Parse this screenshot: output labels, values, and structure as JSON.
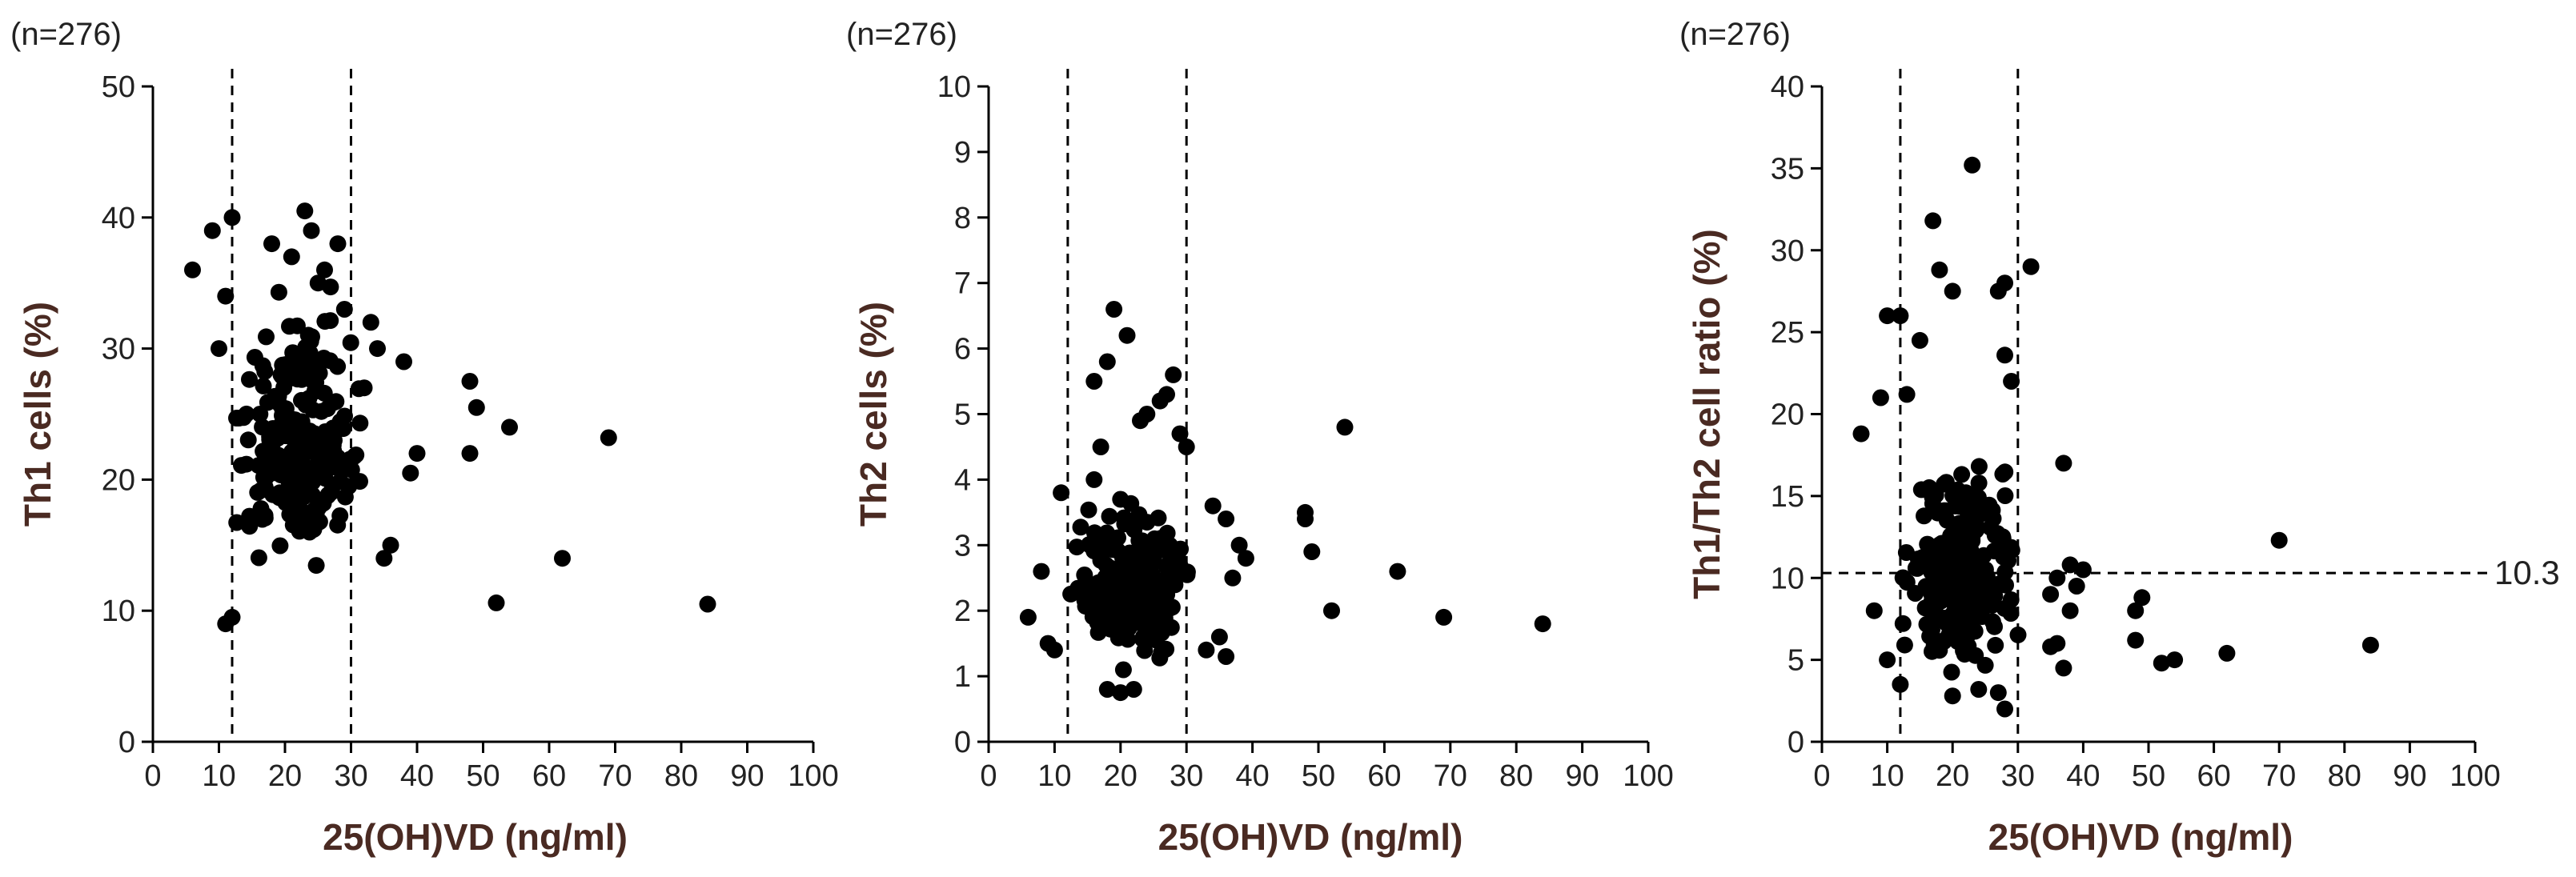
{
  "figure": {
    "colors": {
      "ink": "#000000",
      "title": "#4a2a22",
      "text": "#222222"
    }
  },
  "chart_data": [
    {
      "type": "scatter",
      "n_label": "(n=276)",
      "xlabel": "25(OH)VD (ng/ml)",
      "ylabel": "Th1 cells (%)",
      "xlim": [
        0,
        100
      ],
      "ylim": [
        0,
        50
      ],
      "xticks": [
        0,
        10,
        20,
        30,
        40,
        50,
        60,
        70,
        80,
        90,
        100
      ],
      "yticks": [
        0,
        10,
        20,
        30,
        40,
        50
      ],
      "vlines": [
        12,
        30
      ],
      "seed": 11,
      "n": 276,
      "points": [
        [
          6,
          36
        ],
        [
          9,
          39
        ],
        [
          12,
          40
        ],
        [
          11,
          34
        ],
        [
          10,
          30
        ],
        [
          18,
          38
        ],
        [
          21,
          37
        ],
        [
          23,
          40.5
        ],
        [
          24,
          39
        ],
        [
          28,
          38
        ],
        [
          26,
          36
        ],
        [
          25,
          35
        ],
        [
          29,
          33
        ],
        [
          33,
          32
        ],
        [
          34,
          30
        ],
        [
          38,
          29
        ],
        [
          32,
          27
        ],
        [
          48,
          27.5
        ],
        [
          49,
          25.5
        ],
        [
          54,
          24
        ],
        [
          69,
          23.2
        ],
        [
          48,
          22
        ],
        [
          40,
          22
        ],
        [
          39,
          20.5
        ],
        [
          62,
          14
        ],
        [
          52,
          10.6
        ],
        [
          84,
          10.5
        ],
        [
          11,
          9
        ],
        [
          12,
          9.5
        ],
        [
          36,
          15
        ],
        [
          35,
          14
        ]
      ],
      "clusters": [
        {
          "x": [
            12,
            32
          ],
          "y": [
            10.5,
            36
          ],
          "count": 200
        },
        {
          "x": [
            13,
            29
          ],
          "y": [
            15,
            27
          ],
          "count": 45
        }
      ]
    },
    {
      "type": "scatter",
      "n_label": "(n=276)",
      "xlabel": "25(OH)VD (ng/ml)",
      "ylabel": "Th2 cells (%)",
      "xlim": [
        0,
        100
      ],
      "ylim": [
        0,
        10
      ],
      "xticks": [
        0,
        10,
        20,
        30,
        40,
        50,
        60,
        70,
        80,
        90,
        100
      ],
      "yticks": [
        0,
        1,
        2,
        3,
        4,
        5,
        6,
        7,
        8,
        9,
        10
      ],
      "vlines": [
        12,
        30
      ],
      "seed": 23,
      "n": 276,
      "points": [
        [
          6,
          1.9
        ],
        [
          8,
          2.6
        ],
        [
          9,
          1.5
        ],
        [
          10,
          1.4
        ],
        [
          19,
          6.6
        ],
        [
          21,
          6.2
        ],
        [
          18,
          5.8
        ],
        [
          16,
          5.5
        ],
        [
          28,
          5.6
        ],
        [
          27,
          5.3
        ],
        [
          26,
          5.2
        ],
        [
          24,
          5
        ],
        [
          23,
          4.9
        ],
        [
          29,
          4.7
        ],
        [
          30,
          4.5
        ],
        [
          17,
          4.5
        ],
        [
          16,
          4
        ],
        [
          20,
          3.7
        ],
        [
          34,
          3.6
        ],
        [
          36,
          3.4
        ],
        [
          38,
          3
        ],
        [
          39,
          2.8
        ],
        [
          37,
          2.5
        ],
        [
          35,
          1.6
        ],
        [
          33,
          1.4
        ],
        [
          36,
          1.3
        ],
        [
          48,
          3.5
        ],
        [
          48,
          3.4
        ],
        [
          49,
          2.9
        ],
        [
          54,
          4.8
        ],
        [
          52,
          2
        ],
        [
          62,
          2.6
        ],
        [
          69,
          1.9
        ],
        [
          84,
          1.8
        ],
        [
          11,
          3.8
        ],
        [
          18,
          0.8
        ],
        [
          20,
          0.75
        ],
        [
          22,
          0.8
        ]
      ],
      "clusters": [
        {
          "x": [
            12,
            31
          ],
          "y": [
            0.9,
            3.9
          ],
          "count": 190
        },
        {
          "x": [
            13,
            29
          ],
          "y": [
            1.5,
            3
          ],
          "count": 50
        }
      ]
    },
    {
      "type": "scatter",
      "n_label": "(n=276)",
      "xlabel": "25(OH)VD (ng/ml)",
      "ylabel": "Th1/Th2 cell ratio (%)",
      "xlim": [
        0,
        100
      ],
      "ylim": [
        0,
        40
      ],
      "xticks": [
        0,
        10,
        20,
        30,
        40,
        50,
        60,
        70,
        80,
        90,
        100
      ],
      "yticks": [
        0,
        5,
        10,
        15,
        20,
        25,
        30,
        35,
        40
      ],
      "vlines": [
        12,
        30
      ],
      "hline": 10.3,
      "hline_label": "10.3",
      "seed": 37,
      "n": 276,
      "points": [
        [
          23,
          35.2
        ],
        [
          17,
          31.8
        ],
        [
          32,
          29
        ],
        [
          18,
          28.8
        ],
        [
          28,
          28
        ],
        [
          27,
          27.5
        ],
        [
          20,
          27.5
        ],
        [
          10,
          26
        ],
        [
          12,
          26
        ],
        [
          15,
          24.5
        ],
        [
          28,
          23.6
        ],
        [
          13,
          21.2
        ],
        [
          9,
          21
        ],
        [
          6,
          18.8
        ],
        [
          29,
          22
        ],
        [
          37,
          17
        ],
        [
          70,
          12.3
        ],
        [
          40,
          10.5
        ],
        [
          38,
          10.8
        ],
        [
          39,
          9.5
        ],
        [
          36,
          10
        ],
        [
          35,
          9
        ],
        [
          38,
          8
        ],
        [
          36,
          6
        ],
        [
          35,
          5.8
        ],
        [
          37,
          4.5
        ],
        [
          49,
          8.8
        ],
        [
          48,
          8
        ],
        [
          48,
          6.2
        ],
        [
          54,
          5
        ],
        [
          52,
          4.8
        ],
        [
          62,
          5.4
        ],
        [
          84,
          5.9
        ],
        [
          8,
          8
        ],
        [
          10,
          5
        ],
        [
          12,
          3.5
        ],
        [
          20,
          2.8
        ],
        [
          28,
          2
        ],
        [
          27,
          3
        ],
        [
          24,
          3.2
        ]
      ],
      "clusters": [
        {
          "x": [
            11,
            31
          ],
          "y": [
            3,
            19
          ],
          "count": 190
        },
        {
          "x": [
            13,
            29
          ],
          "y": [
            5,
            12
          ],
          "count": 46
        }
      ]
    }
  ]
}
